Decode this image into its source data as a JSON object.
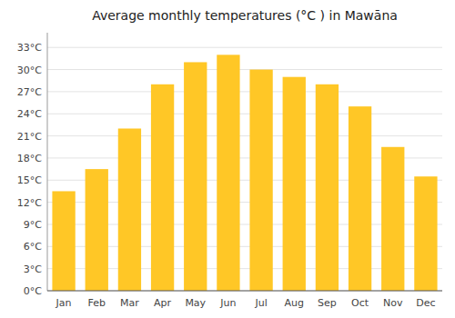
{
  "chart_data": {
    "type": "bar",
    "title": "Average monthly temperatures (°C ) in Mawāna",
    "categories": [
      "Jan",
      "Feb",
      "Mar",
      "Apr",
      "May",
      "Jun",
      "Jul",
      "Aug",
      "Sep",
      "Oct",
      "Nov",
      "Dec"
    ],
    "values": [
      13.5,
      16.5,
      22.0,
      28.0,
      31.0,
      32.0,
      30.0,
      29.0,
      28.0,
      25.0,
      19.5,
      15.5
    ],
    "color": "#FFC726",
    "ylim": [
      0,
      35
    ],
    "yticks": [
      {
        "value": 0,
        "label": "0°C"
      },
      {
        "value": 3,
        "label": "3°C"
      },
      {
        "value": 6,
        "label": "6°C"
      },
      {
        "value": 9,
        "label": "9°C"
      },
      {
        "value": 12,
        "label": "12°C"
      },
      {
        "value": 15,
        "label": "15°C"
      },
      {
        "value": 18,
        "label": "18°C"
      },
      {
        "value": 21,
        "label": "21°C"
      },
      {
        "value": 24,
        "label": "24°C"
      },
      {
        "value": 27,
        "label": "27°C"
      },
      {
        "value": 30,
        "label": "30°C"
      },
      {
        "value": 33,
        "label": "33°C"
      }
    ],
    "grid": true
  }
}
